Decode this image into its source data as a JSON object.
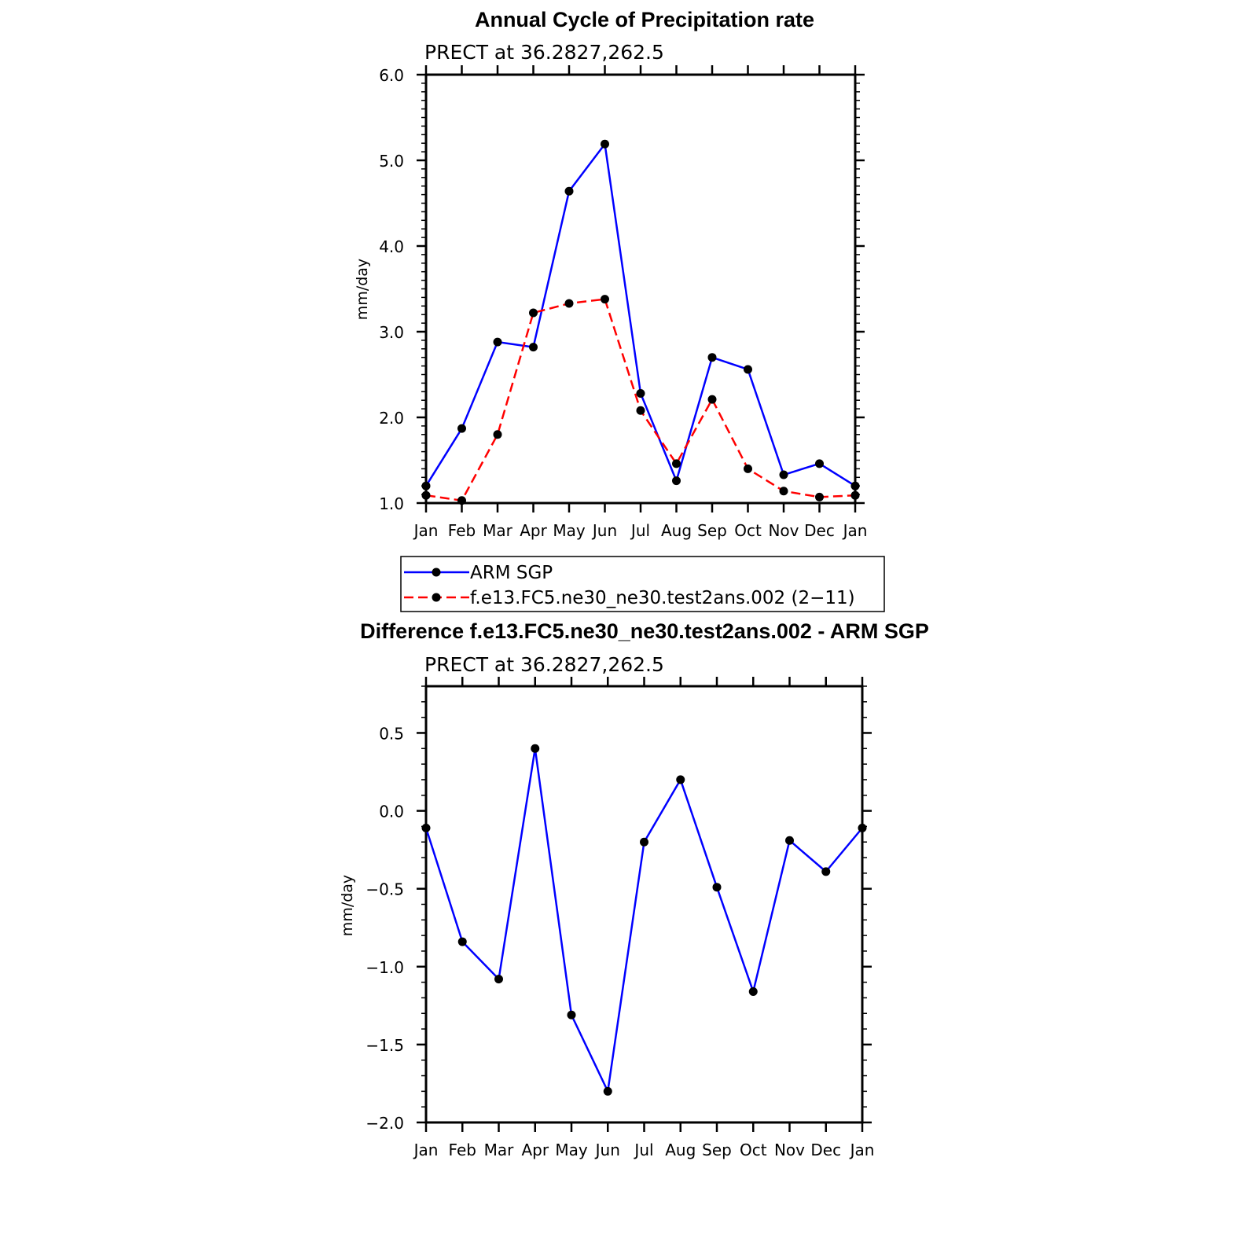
{
  "top": {
    "title": "Annual Cycle of Precipitation rate",
    "subtitle": "PRECT at 36.2827,262.5"
  },
  "bottom": {
    "title": "Difference f.e13.FC5.ne30_ne30.test2ans.002 - ARM SGP",
    "subtitle": "PRECT at 36.2827,262.5"
  },
  "legend": {
    "items": [
      {
        "label": "ARM SGP",
        "color": "#0000ff",
        "dash": "solid"
      },
      {
        "label": "f.e13.FC5.ne30_ne30.test2ans.002 (2−11)",
        "color": "#ff0000",
        "dash": "dashed"
      }
    ]
  },
  "chart_data": [
    {
      "type": "line",
      "title": "Annual Cycle of Precipitation rate",
      "subtitle": "PRECT at 36.2827,262.5",
      "xlabel": "",
      "ylabel": "mm/day",
      "categories": [
        "Jan",
        "Feb",
        "Mar",
        "Apr",
        "May",
        "Jun",
        "Jul",
        "Aug",
        "Sep",
        "Oct",
        "Nov",
        "Dec",
        "Jan"
      ],
      "ylim": [
        1.0,
        6.0
      ],
      "yticks": [
        "1.0",
        "2.0",
        "3.0",
        "4.0",
        "5.0",
        "6.0"
      ],
      "series": [
        {
          "name": "ARM SGP",
          "color": "#0000ff",
          "dash": "solid",
          "values": [
            1.2,
            1.87,
            2.88,
            2.82,
            4.64,
            5.19,
            2.28,
            1.26,
            2.7,
            2.56,
            1.33,
            1.46,
            1.2
          ]
        },
        {
          "name": "f.e13.FC5.ne30_ne30.test2ans.002 (2−11)",
          "color": "#ff0000",
          "dash": "dashed",
          "values": [
            1.09,
            1.03,
            1.8,
            3.22,
            3.33,
            3.38,
            2.08,
            1.46,
            2.21,
            1.4,
            1.14,
            1.07,
            1.09
          ]
        }
      ]
    },
    {
      "type": "line",
      "title": "Difference f.e13.FC5.ne30_ne30.test2ans.002 - ARM SGP",
      "subtitle": "PRECT at 36.2827,262.5",
      "xlabel": "",
      "ylabel": "mm/day",
      "categories": [
        "Jan",
        "Feb",
        "Mar",
        "Apr",
        "May",
        "Jun",
        "Jul",
        "Aug",
        "Sep",
        "Oct",
        "Nov",
        "Dec",
        "Jan"
      ],
      "ylim": [
        -2.0,
        0.8
      ],
      "yticks": [
        "−2.0",
        "−1.5",
        "−1.0",
        "−0.5",
        "0.0",
        "0.5"
      ],
      "series": [
        {
          "color": "#0000ff",
          "dash": "solid",
          "values": [
            -0.11,
            -0.84,
            -1.08,
            0.4,
            -1.31,
            -1.8,
            -0.2,
            0.2,
            -0.49,
            -1.16,
            -0.19,
            -0.39,
            -0.11
          ]
        }
      ]
    }
  ]
}
